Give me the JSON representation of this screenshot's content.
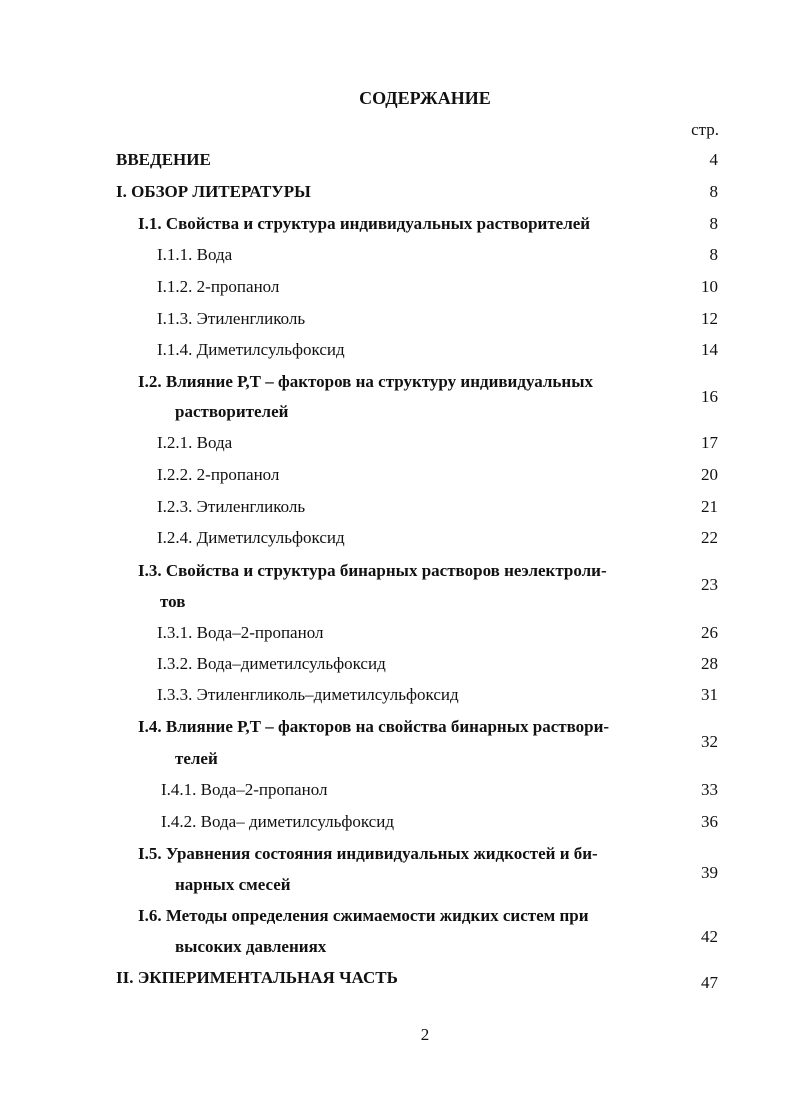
{
  "title": "СОДЕРЖАНИЕ",
  "page_col_header": "стр.",
  "entries": [
    {
      "lines": [
        "ВВЕДЕНИЕ"
      ],
      "page": "4"
    },
    {
      "lines": [
        "I. ОБЗОР ЛИТЕРАТУРЫ"
      ],
      "page": "8"
    },
    {
      "lines": [
        "I.1. Свойства и структура индивидуальных растворителей"
      ],
      "page": "8"
    },
    {
      "lines": [
        "I.1.1. Вода"
      ],
      "page": "8"
    },
    {
      "lines": [
        "I.1.2. 2-пропанол"
      ],
      "page": "10"
    },
    {
      "lines": [
        "I.1.3. Этиленгликоль"
      ],
      "page": "12"
    },
    {
      "lines": [
        "I.1.4. Диметилсульфоксид"
      ],
      "page": "14"
    },
    {
      "lines": [
        "I.2. Влияние Р,Т – факторов на структуру индивидуальных",
        "растворителей"
      ],
      "page": "16"
    },
    {
      "lines": [
        "I.2.1. Вода"
      ],
      "page": "17"
    },
    {
      "lines": [
        "I.2.2. 2-пропанол"
      ],
      "page": "20"
    },
    {
      "lines": [
        "I.2.3. Этиленгликоль"
      ],
      "page": "21"
    },
    {
      "lines": [
        "I.2.4. Диметилсульфоксид"
      ],
      "page": "22"
    },
    {
      "lines": [
        "I.3. Свойства и структура бинарных растворов неэлектроли-",
        "тов"
      ],
      "page": "23"
    },
    {
      "lines": [
        "I.3.1. Вода–2-пропанол"
      ],
      "page": "26"
    },
    {
      "lines": [
        "I.3.2. Вода–диметилсульфоксид"
      ],
      "page": "28"
    },
    {
      "lines": [
        "I.3.3. Этиленгликоль–диметилсульфоксид"
      ],
      "page": "31"
    },
    {
      "lines": [
        "I.4. Влияние Р,Т – факторов на свойства бинарных раствори-",
        "телей"
      ],
      "page": "32"
    },
    {
      "lines": [
        "I.4.1. Вода–2-пропанол"
      ],
      "page": "33"
    },
    {
      "lines": [
        "I.4.2. Вода– диметилсульфоксид"
      ],
      "page": "36"
    },
    {
      "lines": [
        "I.5. Уравнения состояния индивидуальных жидкостей и би-",
        "нарных смесей"
      ],
      "page": "39"
    },
    {
      "lines": [
        "I.6. Методы определения сжимаемости жидких систем при",
        "высоких давлениях"
      ],
      "page": "42"
    },
    {
      "lines": [
        "II. ЭКПЕРИМЕНТАЛЬНАЯ ЧАСТЬ"
      ],
      "page": "47"
    }
  ],
  "page_number": "2"
}
